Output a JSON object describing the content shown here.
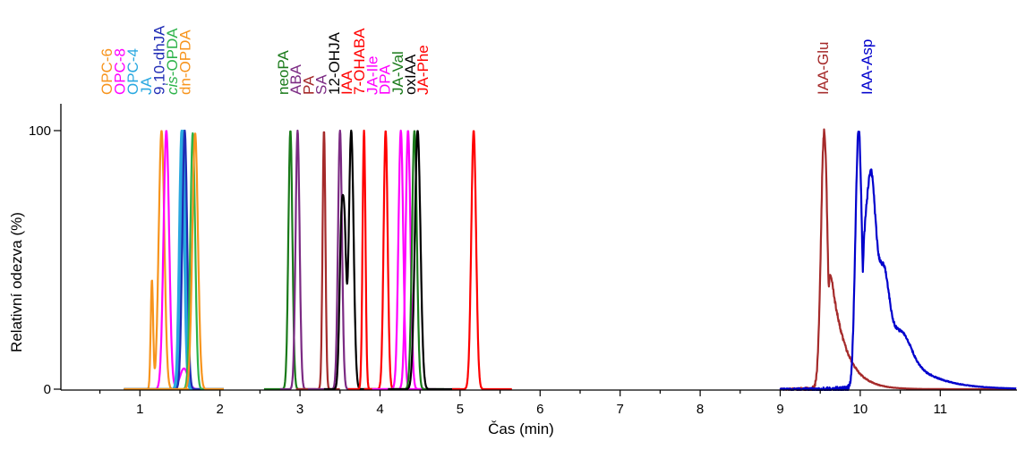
{
  "chart_data": {
    "type": "line",
    "title": "",
    "xlabel": "Čas (min)",
    "ylabel": "Relativní odezva (%)",
    "xlim": [
      0.2,
      11.95
    ],
    "ylim": [
      0,
      100
    ],
    "x_ticks": [
      1,
      2,
      3,
      4,
      5,
      6,
      7,
      8,
      9,
      10,
      11
    ],
    "x_minor_step": 0.5,
    "y_ticks": [
      0,
      100
    ],
    "grid": false,
    "legend": "labels rotated above peaks",
    "series": [
      {
        "name": "OPC-6",
        "color": "#f7941d",
        "rt": 1.27,
        "height": 100,
        "width": 0.035,
        "baseline_start": 0.8,
        "baseline_end": 2.05,
        "extra_peaks": [
          {
            "rt": 1.15,
            "height": 42,
            "width": 0.015
          }
        ]
      },
      {
        "name": "OPC-8",
        "color": "#ff00ff",
        "rt": 1.33,
        "height": 100,
        "width": 0.035,
        "baseline_start": 0.8,
        "baseline_end": 2.05,
        "extra_peaks": [
          {
            "rt": 1.55,
            "height": 8,
            "width": 0.05
          }
        ]
      },
      {
        "name": "OPC-4",
        "color": "#29a8e0",
        "rt": 1.52,
        "height": 100,
        "width": 0.03,
        "baseline_start": 0.8,
        "baseline_end": 2.05,
        "extra_peaks": []
      },
      {
        "name": "JA",
        "color": "#29a8e0",
        "rt": 1.54,
        "height": 100,
        "width": 0.03,
        "baseline_start": 0.8,
        "baseline_end": 2.05,
        "extra_peaks": []
      },
      {
        "name": "9,10-dhJA",
        "color": "#1f2bb5",
        "rt": 1.56,
        "height": 100,
        "width": 0.03,
        "baseline_start": 0.8,
        "baseline_end": 2.05,
        "extra_peaks": []
      },
      {
        "name": "cis-OPDA",
        "color": "#2db34a",
        "rt": 1.66,
        "height": 99,
        "width": 0.03,
        "baseline_start": 0.8,
        "baseline_end": 2.05,
        "extra_peaks": []
      },
      {
        "name": "dn-OPDA",
        "color": "#f7941d",
        "rt": 1.69,
        "height": 99,
        "width": 0.035,
        "baseline_start": 0.8,
        "baseline_end": 2.05,
        "extra_peaks": []
      },
      {
        "name": "neoPA",
        "color": "#1a7a1a",
        "rt": 2.88,
        "height": 100,
        "width": 0.025,
        "baseline_start": 2.55,
        "baseline_end": 3.1,
        "extra_peaks": []
      },
      {
        "name": "ABA",
        "color": "#7b2a83",
        "rt": 2.97,
        "height": 100,
        "width": 0.025,
        "baseline_start": 2.75,
        "baseline_end": 3.2,
        "extra_peaks": []
      },
      {
        "name": "PA",
        "color": "#a52a2a",
        "rt": 3.3,
        "height": 100,
        "width": 0.018,
        "baseline_start": 2.95,
        "baseline_end": 3.5,
        "extra_peaks": []
      },
      {
        "name": "SA",
        "color": "#7b2a83",
        "rt": 3.5,
        "height": 100,
        "width": 0.025,
        "baseline_start": 3.1,
        "baseline_end": 3.9,
        "extra_peaks": []
      },
      {
        "name": "12-OHJA",
        "color": "#000000",
        "rt": 3.64,
        "height": 100,
        "width": 0.03,
        "baseline_start": 3.3,
        "baseline_end": 3.95,
        "extra_peaks": [
          {
            "rt": 3.52,
            "height": 65,
            "width": 0.025
          },
          {
            "rt": 3.56,
            "height": 45,
            "width": 0.02
          }
        ]
      },
      {
        "name": "IAA",
        "color": "#ff0000",
        "rt": 3.8,
        "height": 100,
        "width": 0.018,
        "baseline_start": 3.6,
        "baseline_end": 4.0,
        "extra_peaks": []
      },
      {
        "name": "7-OHABA",
        "color": "#ff0000",
        "rt": 4.07,
        "height": 100,
        "width": 0.025,
        "baseline_start": 3.8,
        "baseline_end": 4.3,
        "extra_peaks": []
      },
      {
        "name": "JA-Ile",
        "color": "#ff00ff",
        "rt": 4.26,
        "height": 100,
        "width": 0.03,
        "baseline_start": 3.9,
        "baseline_end": 4.6,
        "extra_peaks": []
      },
      {
        "name": "DPA",
        "color": "#ff00ff",
        "rt": 4.35,
        "height": 100,
        "width": 0.03,
        "baseline_start": 4.0,
        "baseline_end": 4.7,
        "extra_peaks": []
      },
      {
        "name": "JA-Val",
        "color": "#1a7a1a",
        "rt": 4.43,
        "height": 100,
        "width": 0.03,
        "baseline_start": 4.1,
        "baseline_end": 4.8,
        "extra_peaks": []
      },
      {
        "name": "oxIAA",
        "color": "#000000",
        "rt": 4.47,
        "height": 100,
        "width": 0.035,
        "baseline_start": 4.1,
        "baseline_end": 5.0,
        "extra_peaks": []
      },
      {
        "name": "JA-Phe",
        "color": "#ff0000",
        "rt": 5.17,
        "height": 100,
        "width": 0.03,
        "baseline_start": 4.9,
        "baseline_end": 5.65,
        "extra_peaks": []
      },
      {
        "name": "IAA-Glu",
        "color": "#a52a2a",
        "rt": 9.55,
        "height": 100,
        "width": 0.04,
        "tail": 0.18,
        "baseline_start": 9.0,
        "baseline_end": 11.95,
        "extra_peaks": []
      },
      {
        "name": "IAA-Asp",
        "color": "#0000cc",
        "rt": 9.98,
        "height": 100,
        "width": 0.04,
        "tail": 0.35,
        "baseline_start": 9.0,
        "baseline_end": 11.95,
        "extra_peaks": [
          {
            "rt": 10.14,
            "height": 38,
            "width": 0.05
          },
          {
            "rt": 10.3,
            "height": 18,
            "width": 0.06
          },
          {
            "rt": 10.55,
            "height": 7,
            "width": 0.1
          }
        ]
      }
    ],
    "peak_labels": [
      {
        "text": "OPC-6",
        "color": "#f7941d",
        "italic_prefix": "",
        "group": 1
      },
      {
        "text": "OPC-8",
        "color": "#ff00ff",
        "italic_prefix": "",
        "group": 1
      },
      {
        "text": "OPC-4",
        "color": "#29a8e0",
        "italic_prefix": "",
        "group": 1
      },
      {
        "text": "JA",
        "color": "#29a8e0",
        "italic_prefix": "",
        "group": 1
      },
      {
        "text": "9,10-dhJA",
        "color": "#1f2bb5",
        "italic_prefix": "",
        "group": 1
      },
      {
        "text": "-OPDA",
        "color": "#2db34a",
        "italic_prefix": "cis",
        "group": 1
      },
      {
        "text": "dn-OPDA",
        "color": "#f7941d",
        "italic_prefix": "",
        "group": 1
      },
      {
        "text": "neoPA",
        "color": "#1a7a1a",
        "italic_prefix": "",
        "group": 2
      },
      {
        "text": "ABA",
        "color": "#7b2a83",
        "italic_prefix": "",
        "group": 2
      },
      {
        "text": "PA",
        "color": "#a52a2a",
        "italic_prefix": "",
        "group": 2
      },
      {
        "text": "SA",
        "color": "#7b2a83",
        "italic_prefix": "",
        "group": 2
      },
      {
        "text": "12-OHJA",
        "color": "#000000",
        "italic_prefix": "",
        "group": 2
      },
      {
        "text": "IAA",
        "color": "#ff0000",
        "italic_prefix": "",
        "group": 2
      },
      {
        "text": "7-OHABA",
        "color": "#ff0000",
        "italic_prefix": "",
        "group": 2
      },
      {
        "text": "JA-Ile",
        "color": "#ff00ff",
        "italic_prefix": "",
        "group": 2
      },
      {
        "text": "DPA",
        "color": "#ff00ff",
        "italic_prefix": "",
        "group": 2
      },
      {
        "text": "JA-Val",
        "color": "#1a7a1a",
        "italic_prefix": "",
        "group": 2
      },
      {
        "text": "oxIAA",
        "color": "#000000",
        "italic_prefix": "",
        "group": 2
      },
      {
        "text": "JA-Phe",
        "color": "#ff0000",
        "italic_prefix": "",
        "group": 2
      },
      {
        "text": "IAA-Glu",
        "color": "#a52a2a",
        "italic_prefix": "",
        "group": 3
      },
      {
        "text": "IAA-Asp",
        "color": "#0000cc",
        "italic_prefix": "",
        "group": 3
      }
    ]
  }
}
